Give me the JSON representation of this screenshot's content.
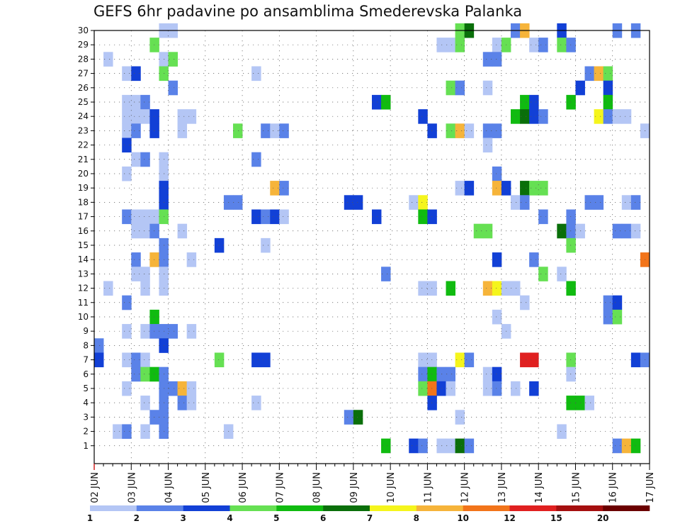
{
  "chart_data": {
    "type": "heatmap",
    "title": "GEFS 6hr padavine po ansamblima Smederevska Palanka",
    "xlabel": "",
    "ylabel": "",
    "x_tick_labels": [
      "02 JUN",
      "03 JUN",
      "04 JUN",
      "05 JUN",
      "06 JUN",
      "07 JUN",
      "08 JUN",
      "09 JUN",
      "10 JUN",
      "11 JUN",
      "12 JUN",
      "13 JUN",
      "14 JUN",
      "15 JUN",
      "16 JUN",
      "17 JUN"
    ],
    "y_tick_labels": [
      "1",
      "2",
      "3",
      "4",
      "5",
      "6",
      "7",
      "8",
      "9",
      "10",
      "11",
      "12",
      "13",
      "14",
      "15",
      "16",
      "17",
      "18",
      "19",
      "20",
      "21",
      "22",
      "23",
      "24",
      "25",
      "26",
      "27",
      "28",
      "29",
      "30"
    ],
    "ylim": [
      0,
      30
    ],
    "x_steps_per_day": 4,
    "x_range_steps": [
      0,
      60
    ],
    "grid": true,
    "colorbar": {
      "labels": [
        "1",
        "2",
        "3",
        "4",
        "5",
        "6",
        "7",
        "8",
        "10",
        "12",
        "15",
        "20"
      ],
      "colors": [
        "#b4c6f5",
        "#5a82e8",
        "#1240d6",
        "#66e053",
        "#10bb10",
        "#0a6f0a",
        "#f5f51c",
        "#f6b43a",
        "#f2741a",
        "#e02020",
        "#a50f0f",
        "#6b0000"
      ]
    },
    "cells": [
      [
        7,
        30,
        0
      ],
      [
        8,
        30,
        0
      ],
      [
        39,
        30,
        3
      ],
      [
        40,
        30,
        5
      ],
      [
        45,
        30,
        1
      ],
      [
        46,
        30,
        7
      ],
      [
        50,
        30,
        2
      ],
      [
        56,
        30,
        1
      ],
      [
        58,
        30,
        1
      ],
      [
        6,
        29,
        3
      ],
      [
        37,
        29,
        0
      ],
      [
        38,
        29,
        0
      ],
      [
        39,
        29,
        3
      ],
      [
        43,
        29,
        0
      ],
      [
        44,
        29,
        3
      ],
      [
        47,
        29,
        0
      ],
      [
        48,
        29,
        1
      ],
      [
        50,
        29,
        3
      ],
      [
        51,
        29,
        1
      ],
      [
        1,
        28,
        0
      ],
      [
        7,
        28,
        0
      ],
      [
        8,
        28,
        3
      ],
      [
        42,
        28,
        1
      ],
      [
        43,
        28,
        1
      ],
      [
        3,
        27,
        0
      ],
      [
        4,
        27,
        2
      ],
      [
        7,
        27,
        3
      ],
      [
        17,
        27,
        0
      ],
      [
        53,
        27,
        1
      ],
      [
        54,
        27,
        7
      ],
      [
        55,
        27,
        3
      ],
      [
        8,
        26,
        1
      ],
      [
        38,
        26,
        3
      ],
      [
        39,
        26,
        1
      ],
      [
        42,
        26,
        0
      ],
      [
        52,
        26,
        2
      ],
      [
        55,
        26,
        2
      ],
      [
        3,
        25,
        0
      ],
      [
        4,
        25,
        0
      ],
      [
        5,
        25,
        1
      ],
      [
        30,
        25,
        2
      ],
      [
        31,
        25,
        4
      ],
      [
        46,
        25,
        4
      ],
      [
        47,
        25,
        2
      ],
      [
        51,
        25,
        4
      ],
      [
        55,
        25,
        4
      ],
      [
        3,
        24,
        0
      ],
      [
        4,
        24,
        0
      ],
      [
        5,
        24,
        0
      ],
      [
        6,
        24,
        2
      ],
      [
        9,
        24,
        0
      ],
      [
        10,
        24,
        0
      ],
      [
        35,
        24,
        2
      ],
      [
        45,
        24,
        4
      ],
      [
        46,
        24,
        5
      ],
      [
        47,
        24,
        2
      ],
      [
        48,
        24,
        1
      ],
      [
        54,
        24,
        6
      ],
      [
        55,
        24,
        1
      ],
      [
        56,
        24,
        0
      ],
      [
        57,
        24,
        0
      ],
      [
        3,
        23,
        0
      ],
      [
        4,
        23,
        1
      ],
      [
        6,
        23,
        2
      ],
      [
        9,
        23,
        0
      ],
      [
        15,
        23,
        3
      ],
      [
        18,
        23,
        1
      ],
      [
        19,
        23,
        0
      ],
      [
        20,
        23,
        1
      ],
      [
        36,
        23,
        2
      ],
      [
        38,
        23,
        3
      ],
      [
        39,
        23,
        7
      ],
      [
        40,
        23,
        0
      ],
      [
        42,
        23,
        1
      ],
      [
        43,
        23,
        1
      ],
      [
        59,
        23,
        0
      ],
      [
        3,
        22,
        2
      ],
      [
        42,
        22,
        0
      ],
      [
        4,
        21,
        0
      ],
      [
        5,
        21,
        1
      ],
      [
        7,
        21,
        0
      ],
      [
        17,
        21,
        1
      ],
      [
        3,
        20,
        0
      ],
      [
        7,
        20,
        0
      ],
      [
        43,
        20,
        1
      ],
      [
        7,
        19,
        2
      ],
      [
        19,
        19,
        7
      ],
      [
        20,
        19,
        1
      ],
      [
        39,
        19,
        0
      ],
      [
        40,
        19,
        2
      ],
      [
        43,
        19,
        7
      ],
      [
        44,
        19,
        2
      ],
      [
        46,
        19,
        5
      ],
      [
        47,
        19,
        3
      ],
      [
        48,
        19,
        3
      ],
      [
        7,
        18,
        2
      ],
      [
        14,
        18,
        1
      ],
      [
        15,
        18,
        1
      ],
      [
        27,
        18,
        2
      ],
      [
        28,
        18,
        2
      ],
      [
        34,
        18,
        0
      ],
      [
        35,
        18,
        6
      ],
      [
        45,
        18,
        0
      ],
      [
        46,
        18,
        1
      ],
      [
        53,
        18,
        1
      ],
      [
        54,
        18,
        1
      ],
      [
        57,
        18,
        0
      ],
      [
        58,
        18,
        1
      ],
      [
        3,
        17,
        1
      ],
      [
        4,
        17,
        0
      ],
      [
        5,
        17,
        0
      ],
      [
        6,
        17,
        0
      ],
      [
        7,
        17,
        3
      ],
      [
        17,
        17,
        2
      ],
      [
        18,
        17,
        1
      ],
      [
        19,
        17,
        2
      ],
      [
        20,
        17,
        0
      ],
      [
        30,
        17,
        2
      ],
      [
        35,
        17,
        4
      ],
      [
        36,
        17,
        2
      ],
      [
        48,
        17,
        1
      ],
      [
        51,
        17,
        1
      ],
      [
        4,
        16,
        0
      ],
      [
        5,
        16,
        0
      ],
      [
        6,
        16,
        1
      ],
      [
        9,
        16,
        0
      ],
      [
        41,
        16,
        3
      ],
      [
        42,
        16,
        3
      ],
      [
        50,
        16,
        5
      ],
      [
        51,
        16,
        1
      ],
      [
        52,
        16,
        0
      ],
      [
        56,
        16,
        1
      ],
      [
        57,
        16,
        1
      ],
      [
        58,
        16,
        0
      ],
      [
        7,
        15,
        1
      ],
      [
        13,
        15,
        2
      ],
      [
        18,
        15,
        0
      ],
      [
        51,
        15,
        3
      ],
      [
        4,
        14,
        1
      ],
      [
        6,
        14,
        7
      ],
      [
        7,
        14,
        1
      ],
      [
        10,
        14,
        0
      ],
      [
        43,
        14,
        2
      ],
      [
        47,
        14,
        1
      ],
      [
        59,
        14,
        8
      ],
      [
        4,
        13,
        0
      ],
      [
        5,
        13,
        0
      ],
      [
        7,
        13,
        0
      ],
      [
        31,
        13,
        1
      ],
      [
        48,
        13,
        3
      ],
      [
        50,
        13,
        0
      ],
      [
        1,
        12,
        0
      ],
      [
        5,
        12,
        0
      ],
      [
        7,
        12,
        0
      ],
      [
        35,
        12,
        0
      ],
      [
        36,
        12,
        0
      ],
      [
        38,
        12,
        4
      ],
      [
        42,
        12,
        7
      ],
      [
        43,
        12,
        6
      ],
      [
        44,
        12,
        0
      ],
      [
        45,
        12,
        0
      ],
      [
        51,
        12,
        4
      ],
      [
        3,
        11,
        1
      ],
      [
        46,
        11,
        0
      ],
      [
        55,
        11,
        1
      ],
      [
        56,
        11,
        2
      ],
      [
        6,
        10,
        4
      ],
      [
        43,
        10,
        0
      ],
      [
        55,
        10,
        1
      ],
      [
        56,
        10,
        3
      ],
      [
        3,
        9,
        0
      ],
      [
        5,
        9,
        0
      ],
      [
        6,
        9,
        1
      ],
      [
        7,
        9,
        1
      ],
      [
        8,
        9,
        1
      ],
      [
        10,
        9,
        0
      ],
      [
        44,
        9,
        0
      ],
      [
        0,
        8,
        1
      ],
      [
        7,
        8,
        2
      ],
      [
        0,
        7,
        2
      ],
      [
        3,
        7,
        0
      ],
      [
        4,
        7,
        1
      ],
      [
        5,
        7,
        0
      ],
      [
        13,
        7,
        3
      ],
      [
        17,
        7,
        2
      ],
      [
        18,
        7,
        2
      ],
      [
        35,
        7,
        0
      ],
      [
        36,
        7,
        0
      ],
      [
        39,
        7,
        6
      ],
      [
        40,
        7,
        1
      ],
      [
        46,
        7,
        9
      ],
      [
        47,
        7,
        9
      ],
      [
        51,
        7,
        3
      ],
      [
        58,
        7,
        2
      ],
      [
        59,
        7,
        1
      ],
      [
        4,
        6,
        1
      ],
      [
        5,
        6,
        3
      ],
      [
        6,
        6,
        4
      ],
      [
        7,
        6,
        1
      ],
      [
        35,
        6,
        1
      ],
      [
        36,
        6,
        4
      ],
      [
        37,
        6,
        1
      ],
      [
        38,
        6,
        1
      ],
      [
        42,
        6,
        0
      ],
      [
        43,
        6,
        2
      ],
      [
        51,
        6,
        0
      ],
      [
        3,
        5,
        0
      ],
      [
        7,
        5,
        1
      ],
      [
        8,
        5,
        1
      ],
      [
        9,
        5,
        7
      ],
      [
        10,
        5,
        0
      ],
      [
        35,
        5,
        3
      ],
      [
        36,
        5,
        8
      ],
      [
        37,
        5,
        2
      ],
      [
        38,
        5,
        0
      ],
      [
        42,
        5,
        0
      ],
      [
        43,
        5,
        1
      ],
      [
        45,
        5,
        0
      ],
      [
        47,
        5,
        2
      ],
      [
        5,
        4,
        0
      ],
      [
        7,
        4,
        1
      ],
      [
        9,
        4,
        1
      ],
      [
        10,
        4,
        0
      ],
      [
        17,
        4,
        0
      ],
      [
        36,
        4,
        2
      ],
      [
        51,
        4,
        4
      ],
      [
        52,
        4,
        4
      ],
      [
        53,
        4,
        0
      ],
      [
        6,
        3,
        1
      ],
      [
        7,
        3,
        1
      ],
      [
        27,
        3,
        1
      ],
      [
        28,
        3,
        5
      ],
      [
        39,
        3,
        0
      ],
      [
        2,
        2,
        0
      ],
      [
        3,
        2,
        1
      ],
      [
        5,
        2,
        0
      ],
      [
        7,
        2,
        1
      ],
      [
        14,
        2,
        0
      ],
      [
        50,
        2,
        0
      ],
      [
        31,
        1,
        4
      ],
      [
        34,
        1,
        2
      ],
      [
        35,
        1,
        1
      ],
      [
        37,
        1,
        0
      ],
      [
        38,
        1,
        0
      ],
      [
        39,
        1,
        5
      ],
      [
        40,
        1,
        1
      ],
      [
        56,
        1,
        1
      ],
      [
        57,
        1,
        7
      ],
      [
        58,
        1,
        4
      ]
    ]
  }
}
